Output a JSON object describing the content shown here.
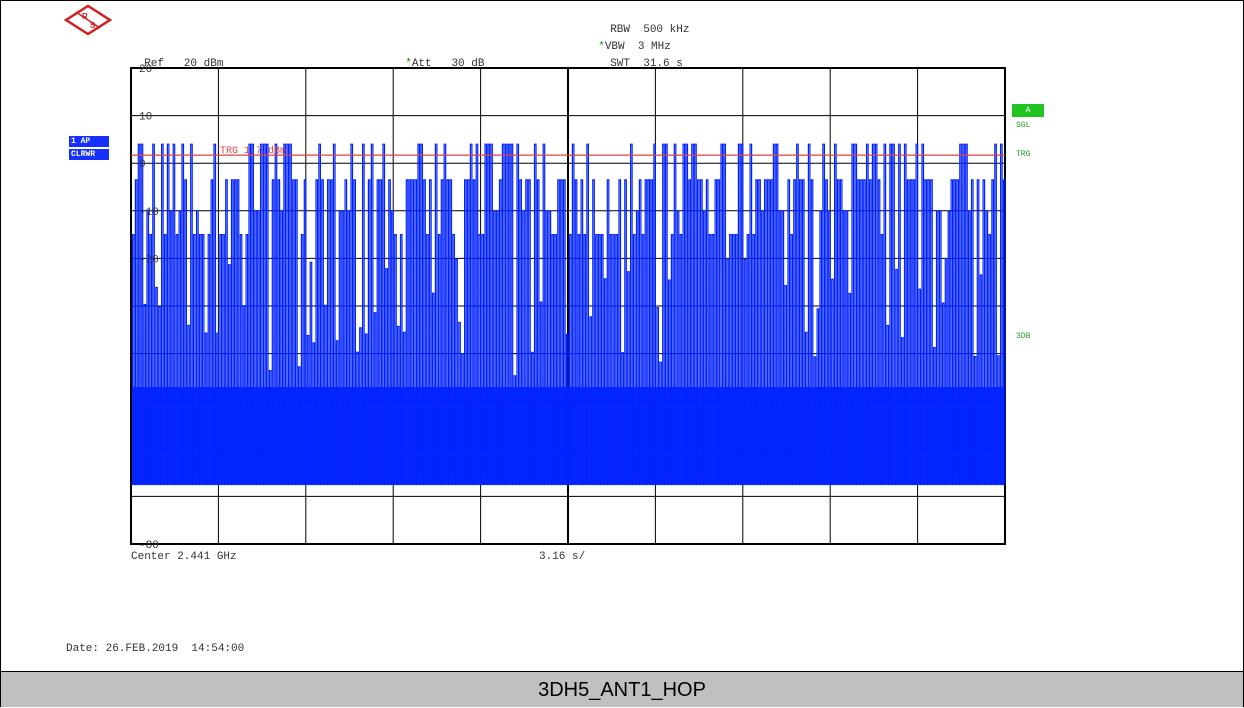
{
  "header": {
    "rbw_label": "RBW",
    "rbw_value": "500 kHz",
    "vbw_label": "VBW",
    "vbw_value": "3 MHz",
    "swt_label": "SWT",
    "swt_value": "31.6 s",
    "ref_label": "Ref",
    "ref_value": "20 dBm",
    "att_label": "Att",
    "att_value": "30 dB",
    "star": "*"
  },
  "left_labels": {
    "trace": "1 AP",
    "mode": "CLRWR"
  },
  "right_labels": {
    "a_box": "A",
    "sgl": "SGL",
    "trg": "TRG",
    "three_db": "3DB"
  },
  "trigger_line": {
    "label": "TRG 1.7 dBm",
    "level_dbm": 1.7
  },
  "footer_info": {
    "center": "Center 2.441 GHz",
    "sweep_div": "3.16 s/",
    "date": "Date: 26.FEB.2019  14:54:00"
  },
  "caption": "3DH5_ANT1_HOP",
  "colors": {
    "trace": "#0022ff",
    "trigger": "#e04040",
    "grid": "#000000",
    "badge_green": "#22c422"
  },
  "chart_data": {
    "type": "line",
    "title": "",
    "xlabel": "",
    "ylabel": "",
    "ylim": [
      -80,
      20
    ],
    "xlim": [
      0,
      31.6
    ],
    "y_ticks": [
      20,
      10,
      0,
      -10,
      -20,
      -30,
      -40,
      -50,
      -60,
      -70,
      -80
    ],
    "y_tick_labels_visible": [
      "20",
      "10",
      "0",
      "-10",
      "-20",
      "-80"
    ],
    "grid": true,
    "series": [
      {
        "peak_levels_dbm": [
          4,
          -3.5,
          -10,
          -15,
          -20
        ],
        "floor_dbm": -67.5,
        "pulse_count": 300
      }
    ]
  }
}
